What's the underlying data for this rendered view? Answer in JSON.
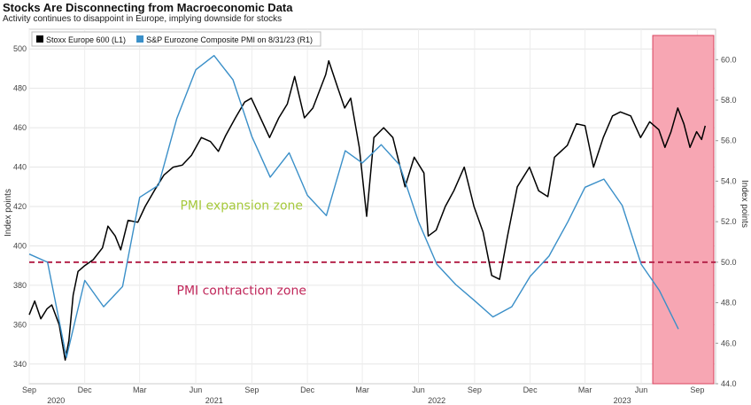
{
  "chart_data": {
    "type": "line",
    "title": "Stocks Are Disconnecting from Macroeconomic Data",
    "subtitle": "Activity continues to disappoint in Europe, implying downside for stocks",
    "x_range": [
      "2020-09-01",
      "2023-10-01"
    ],
    "y_left": {
      "label": "Index points",
      "range": [
        330,
        510
      ],
      "ticks": [
        340,
        360,
        380,
        400,
        420,
        440,
        460,
        480,
        500
      ]
    },
    "y_right": {
      "label": "Index points",
      "range": [
        44.0,
        61.5
      ],
      "ticks": [
        "44.0",
        "46.0",
        "48.0",
        "50.0",
        "52.0",
        "54.0",
        "56.0",
        "58.0",
        "60.0"
      ]
    },
    "x_ticks": [
      {
        "label": "Sep",
        "date": "2020-09-01"
      },
      {
        "label": "Dec",
        "date": "2020-12-01"
      },
      {
        "label": "Mar",
        "date": "2021-03-01"
      },
      {
        "label": "Jun",
        "date": "2021-06-01"
      },
      {
        "label": "Sep",
        "date": "2021-09-01"
      },
      {
        "label": "Dec",
        "date": "2021-12-01"
      },
      {
        "label": "Mar",
        "date": "2022-03-01"
      },
      {
        "label": "Jun",
        "date": "2022-06-01"
      },
      {
        "label": "Sep",
        "date": "2022-09-01"
      },
      {
        "label": "Dec",
        "date": "2022-12-01"
      },
      {
        "label": "Mar",
        "date": "2023-03-01"
      },
      {
        "label": "Jun",
        "date": "2023-06-01"
      },
      {
        "label": "Sep",
        "date": "2023-09-01"
      }
    ],
    "year_labels": [
      {
        "label": "2020",
        "date": "2020-10-15"
      },
      {
        "label": "2021",
        "date": "2021-07-01"
      },
      {
        "label": "2022",
        "date": "2022-07-01"
      },
      {
        "label": "2023",
        "date": "2023-05-01"
      }
    ],
    "legend": {
      "placement": "top-left"
    },
    "series": [
      {
        "name": "Stoxx Europe 600 (L1)",
        "axis": "left",
        "color": "#000000",
        "points": [
          [
            "2020-09-01",
            365
          ],
          [
            "2020-09-10",
            372
          ],
          [
            "2020-09-20",
            363
          ],
          [
            "2020-09-30",
            368
          ],
          [
            "2020-10-08",
            370
          ],
          [
            "2020-10-20",
            360
          ],
          [
            "2020-10-30",
            342
          ],
          [
            "2020-11-05",
            352
          ],
          [
            "2020-11-12",
            375
          ],
          [
            "2020-11-20",
            387
          ],
          [
            "2020-12-01",
            390
          ],
          [
            "2020-12-15",
            393
          ],
          [
            "2020-12-30",
            399
          ],
          [
            "2021-01-08",
            410
          ],
          [
            "2021-01-20",
            405
          ],
          [
            "2021-01-29",
            398
          ],
          [
            "2021-02-10",
            413
          ],
          [
            "2021-02-26",
            412
          ],
          [
            "2021-03-10",
            420
          ],
          [
            "2021-03-25",
            428
          ],
          [
            "2021-04-10",
            436
          ],
          [
            "2021-04-25",
            440
          ],
          [
            "2021-05-10",
            441
          ],
          [
            "2021-05-25",
            446
          ],
          [
            "2021-06-10",
            455
          ],
          [
            "2021-06-25",
            453
          ],
          [
            "2021-07-08",
            448
          ],
          [
            "2021-07-20",
            456
          ],
          [
            "2021-08-05",
            465
          ],
          [
            "2021-08-20",
            473
          ],
          [
            "2021-08-31",
            475
          ],
          [
            "2021-09-15",
            465
          ],
          [
            "2021-09-30",
            455
          ],
          [
            "2021-10-15",
            465
          ],
          [
            "2021-10-29",
            472
          ],
          [
            "2021-11-10",
            486
          ],
          [
            "2021-11-26",
            465
          ],
          [
            "2021-12-10",
            470
          ],
          [
            "2021-12-31",
            487
          ],
          [
            "2022-01-05",
            494
          ],
          [
            "2022-01-20",
            480
          ],
          [
            "2022-01-31",
            470
          ],
          [
            "2022-02-10",
            475
          ],
          [
            "2022-02-24",
            450
          ],
          [
            "2022-03-08",
            415
          ],
          [
            "2022-03-20",
            455
          ],
          [
            "2022-04-05",
            460
          ],
          [
            "2022-04-20",
            455
          ],
          [
            "2022-05-10",
            430
          ],
          [
            "2022-05-25",
            445
          ],
          [
            "2022-06-10",
            437
          ],
          [
            "2022-06-17",
            405
          ],
          [
            "2022-06-30",
            408
          ],
          [
            "2022-07-15",
            420
          ],
          [
            "2022-07-29",
            428
          ],
          [
            "2022-08-15",
            440
          ],
          [
            "2022-08-31",
            420
          ],
          [
            "2022-09-15",
            407
          ],
          [
            "2022-09-29",
            385
          ],
          [
            "2022-10-12",
            383
          ],
          [
            "2022-10-25",
            405
          ],
          [
            "2022-11-10",
            430
          ],
          [
            "2022-11-30",
            440
          ],
          [
            "2022-12-15",
            428
          ],
          [
            "2022-12-30",
            425
          ],
          [
            "2023-01-10",
            445
          ],
          [
            "2023-01-31",
            451
          ],
          [
            "2023-02-15",
            462
          ],
          [
            "2023-03-01",
            461
          ],
          [
            "2023-03-15",
            440
          ],
          [
            "2023-03-31",
            455
          ],
          [
            "2023-04-15",
            466
          ],
          [
            "2023-04-28",
            468
          ],
          [
            "2023-05-15",
            466
          ],
          [
            "2023-05-31",
            455
          ],
          [
            "2023-06-15",
            463
          ],
          [
            "2023-06-30",
            459
          ],
          [
            "2023-07-10",
            450
          ],
          [
            "2023-07-20",
            458
          ],
          [
            "2023-07-31",
            470
          ],
          [
            "2023-08-10",
            462
          ],
          [
            "2023-08-20",
            450
          ],
          [
            "2023-08-31",
            458
          ],
          [
            "2023-09-08",
            454
          ],
          [
            "2023-09-14",
            461
          ]
        ]
      },
      {
        "name": "S&P Eurozone Composite PMI on 8/31/23 (R1)",
        "axis": "right",
        "color": "#3a8fc8",
        "points": [
          [
            "2020-09-01",
            50.4
          ],
          [
            "2020-10-01",
            50.0
          ],
          [
            "2020-11-01",
            45.3
          ],
          [
            "2020-12-01",
            49.1
          ],
          [
            "2021-01-01",
            47.8
          ],
          [
            "2021-02-01",
            48.8
          ],
          [
            "2021-03-01",
            53.2
          ],
          [
            "2021-04-01",
            53.8
          ],
          [
            "2021-05-01",
            57.1
          ],
          [
            "2021-06-01",
            59.5
          ],
          [
            "2021-07-01",
            60.2
          ],
          [
            "2021-08-01",
            59.0
          ],
          [
            "2021-09-01",
            56.2
          ],
          [
            "2021-10-01",
            54.2
          ],
          [
            "2021-11-01",
            55.4
          ],
          [
            "2021-12-01",
            53.3
          ],
          [
            "2022-01-01",
            52.3
          ],
          [
            "2022-02-01",
            55.5
          ],
          [
            "2022-03-01",
            54.9
          ],
          [
            "2022-04-01",
            55.8
          ],
          [
            "2022-05-01",
            54.8
          ],
          [
            "2022-06-01",
            52.0
          ],
          [
            "2022-07-01",
            49.9
          ],
          [
            "2022-08-01",
            48.9
          ],
          [
            "2022-09-01",
            48.1
          ],
          [
            "2022-10-01",
            47.3
          ],
          [
            "2022-11-01",
            47.8
          ],
          [
            "2022-12-01",
            49.3
          ],
          [
            "2023-01-01",
            50.3
          ],
          [
            "2023-02-01",
            52.0
          ],
          [
            "2023-03-01",
            53.7
          ],
          [
            "2023-04-01",
            54.1
          ],
          [
            "2023-05-01",
            52.8
          ],
          [
            "2023-06-01",
            49.9
          ],
          [
            "2023-07-01",
            48.6
          ],
          [
            "2023-08-01",
            46.7
          ]
        ]
      }
    ],
    "annotations": [
      {
        "text": "PMI expansion zone",
        "color": "#a6c93c",
        "date": "2021-08-15",
        "y_right": 52.6
      },
      {
        "text": "PMI contraction zone",
        "color": "#c0275a",
        "date": "2021-08-15",
        "y_right": 48.4
      }
    ],
    "reference_line": {
      "axis": "right",
      "value": 50.0,
      "color": "#b5264c",
      "style": "dashed"
    },
    "highlight_region": {
      "start": "2023-06-20",
      "end": "2023-09-28",
      "color": "#f7a6b3"
    },
    "grid": true
  }
}
